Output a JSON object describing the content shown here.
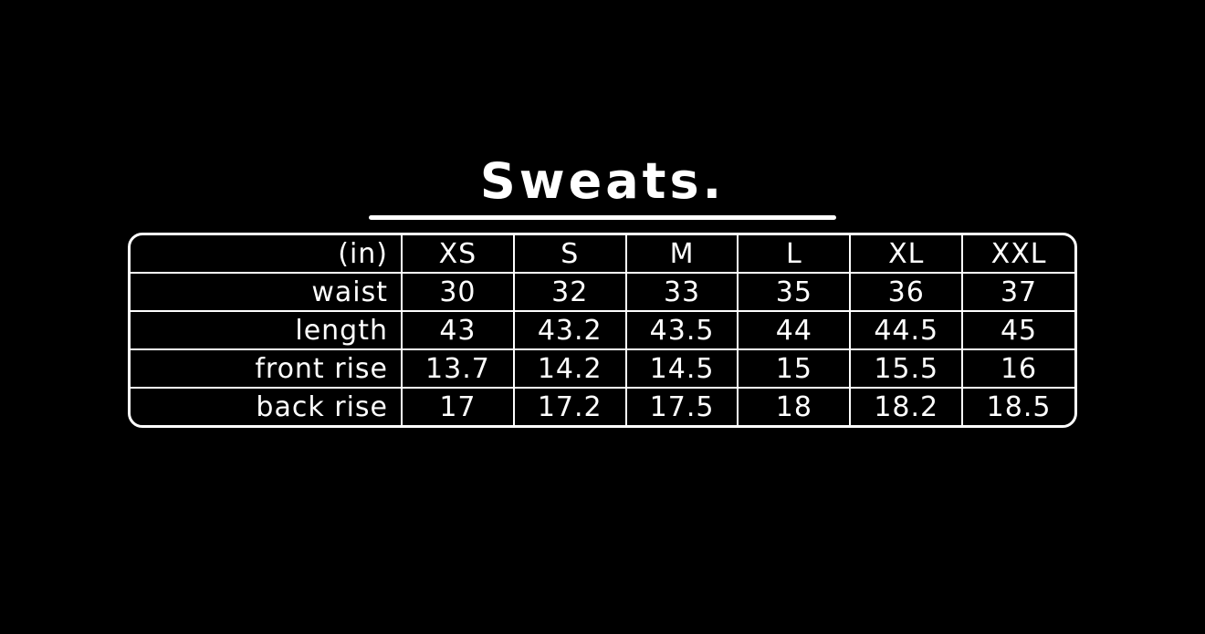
{
  "title": {
    "text": "Sweats."
  },
  "unit_label": "(in)",
  "colors": {
    "background": "#000000",
    "foreground": "#ffffff"
  },
  "chart_data": {
    "type": "table",
    "title": "Sweats.",
    "unit": "in",
    "columns": [
      "XS",
      "S",
      "M",
      "L",
      "XL",
      "XXL"
    ],
    "rows": [
      {
        "label": "waist",
        "values": [
          30,
          32,
          33,
          35,
          36,
          37
        ]
      },
      {
        "label": "length",
        "values": [
          43,
          43.2,
          43.5,
          44,
          44.5,
          45
        ]
      },
      {
        "label": "front rise",
        "values": [
          13.7,
          14.2,
          14.5,
          15,
          15.5,
          16
        ]
      },
      {
        "label": "back rise",
        "values": [
          17,
          17.2,
          17.5,
          18,
          18.2,
          18.5
        ]
      }
    ]
  }
}
